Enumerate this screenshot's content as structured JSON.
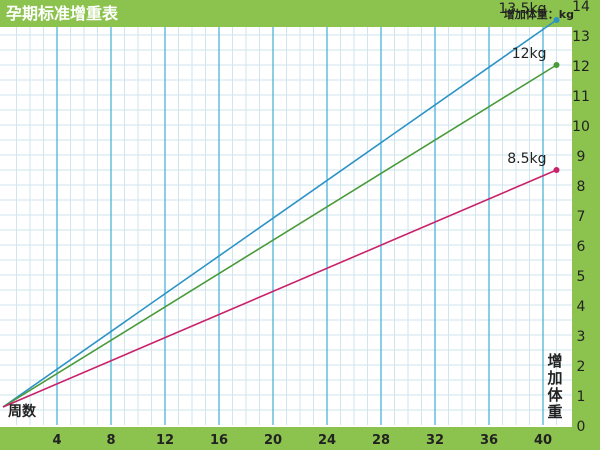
{
  "header": {
    "title": "孕期标准增重表",
    "unit_label": "增加体重：kg"
  },
  "axis_captions": {
    "x": "周数",
    "y_chars": [
      "增",
      "加",
      "体",
      "重"
    ]
  },
  "colors": {
    "frame_green": "#8cc34f",
    "grid_major": "#4db3d8",
    "grid_minor": "#cfe6ee",
    "title_text": "#ffffff",
    "axis_text": "#222222"
  },
  "chart_data": {
    "type": "line",
    "title": "孕期标准增重表",
    "xlabel": "周数",
    "ylabel": "增加体重",
    "unit": "kg",
    "xlim": [
      0,
      42
    ],
    "ylim": [
      0,
      14
    ],
    "x_ticks": [
      4,
      8,
      12,
      16,
      20,
      24,
      28,
      32,
      36,
      40
    ],
    "y_ticks": [
      0,
      1,
      2,
      3,
      4,
      5,
      6,
      7,
      8,
      9,
      10,
      11,
      12,
      13,
      14
    ],
    "grid": true,
    "series": [
      {
        "x": [
          0,
          41
        ],
        "y": [
          0.6,
          13.5
        ],
        "color": "#2e93c6",
        "end_label": "13.5kg"
      },
      {
        "x": [
          0,
          41
        ],
        "y": [
          0.6,
          12
        ],
        "color": "#4a9a3a",
        "end_label": "12kg"
      },
      {
        "x": [
          0,
          41
        ],
        "y": [
          0.6,
          8.5
        ],
        "color": "#c9226a",
        "end_label": "8.5kg"
      }
    ]
  }
}
